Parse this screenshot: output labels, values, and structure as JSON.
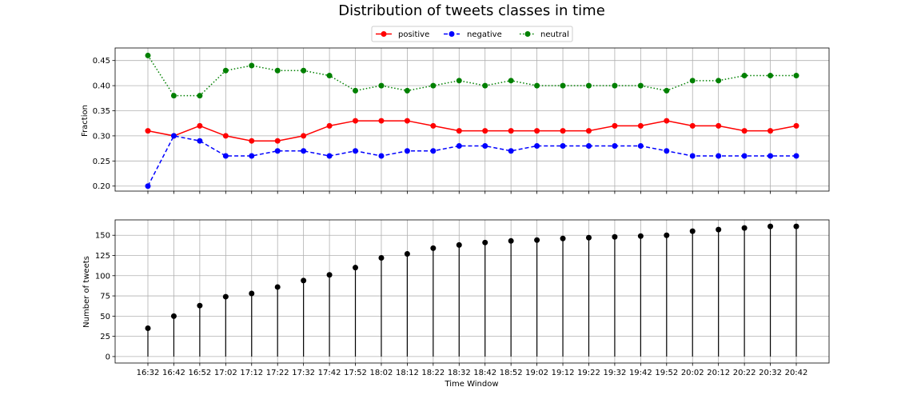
{
  "chart_data": {
    "title": "Distribution of tweets classes in time",
    "categories": [
      "16:32",
      "16:42",
      "16:52",
      "17:02",
      "17:12",
      "17:22",
      "17:32",
      "17:42",
      "17:52",
      "18:02",
      "18:12",
      "18:22",
      "18:32",
      "18:42",
      "18:52",
      "19:02",
      "19:12",
      "19:22",
      "19:32",
      "19:42",
      "19:52",
      "20:02",
      "20:12",
      "20:22",
      "20:32",
      "20:42"
    ],
    "xlabel": "Time Window",
    "legend": {
      "placement": "top-center"
    },
    "grid": true,
    "panels": [
      {
        "type": "line",
        "ylabel": "Fraction",
        "ylim": [
          0.19,
          0.475
        ],
        "yticks": [
          0.2,
          0.25,
          0.3,
          0.35,
          0.4,
          0.45
        ],
        "series": [
          {
            "name": "positive",
            "color": "#ff0000",
            "dash": "solid",
            "values": [
              0.31,
              0.3,
              0.32,
              0.3,
              0.29,
              0.29,
              0.3,
              0.32,
              0.33,
              0.33,
              0.33,
              0.32,
              0.31,
              0.31,
              0.31,
              0.31,
              0.31,
              0.31,
              0.32,
              0.32,
              0.33,
              0.32,
              0.32,
              0.31,
              0.31,
              0.32
            ]
          },
          {
            "name": "negative",
            "color": "#0000ff",
            "dash": "dashed",
            "values": [
              0.2,
              0.3,
              0.29,
              0.26,
              0.26,
              0.27,
              0.27,
              0.26,
              0.27,
              0.26,
              0.27,
              0.27,
              0.28,
              0.28,
              0.27,
              0.28,
              0.28,
              0.28,
              0.28,
              0.28,
              0.27,
              0.26,
              0.26,
              0.26,
              0.26,
              0.26
            ]
          },
          {
            "name": "neutral",
            "color": "#008000",
            "dash": "dotted",
            "values": [
              0.46,
              0.38,
              0.38,
              0.43,
              0.44,
              0.43,
              0.43,
              0.42,
              0.39,
              0.4,
              0.39,
              0.4,
              0.41,
              0.4,
              0.41,
              0.4,
              0.4,
              0.4,
              0.4,
              0.4,
              0.39,
              0.41,
              0.41,
              0.42,
              0.42,
              0.42
            ]
          }
        ]
      },
      {
        "type": "stem",
        "ylabel": "Number of tweets",
        "ylim": [
          -8,
          169
        ],
        "yticks": [
          0,
          25,
          50,
          75,
          100,
          125,
          150
        ],
        "color": "#000000",
        "values": [
          35,
          50,
          63,
          74,
          78,
          86,
          94,
          101,
          110,
          122,
          127,
          134,
          138,
          141,
          143,
          144,
          146,
          147,
          148,
          149,
          150,
          155,
          157,
          159,
          161,
          161
        ]
      }
    ]
  }
}
